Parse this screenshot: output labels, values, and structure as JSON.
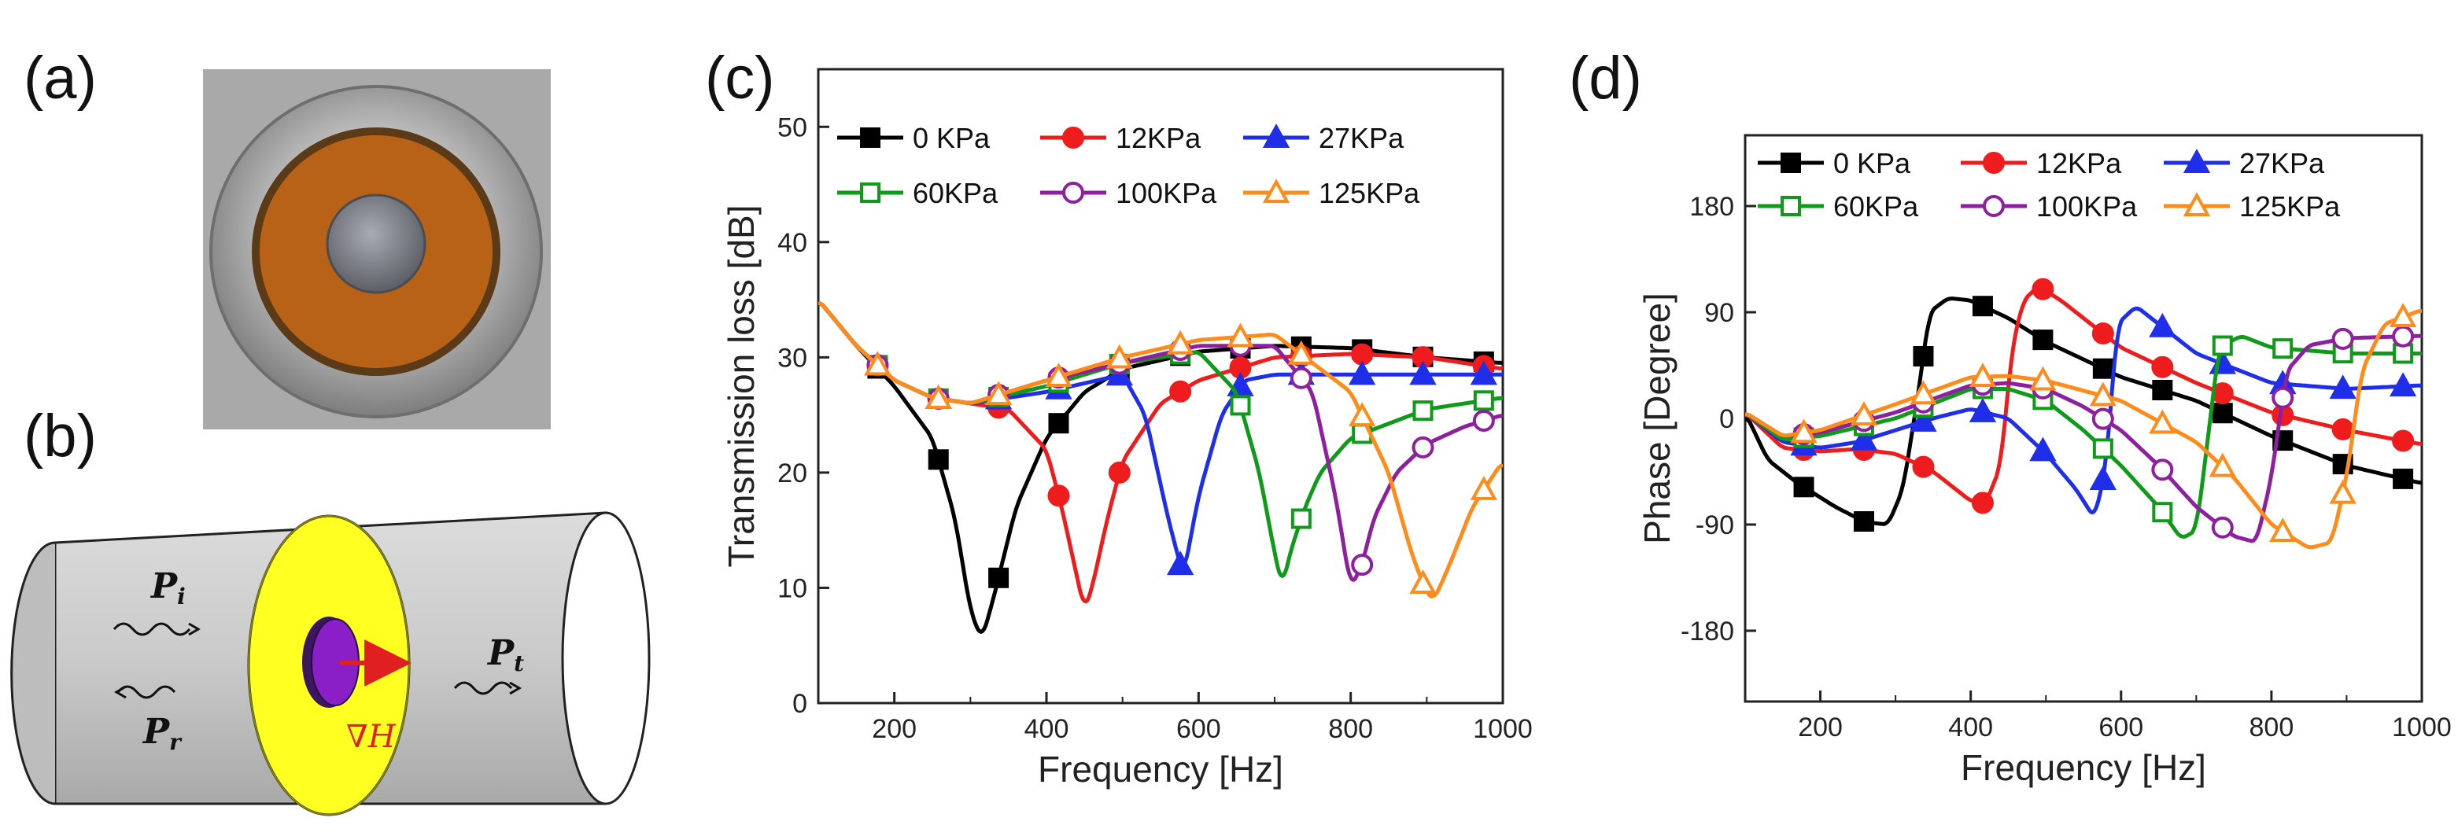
{
  "panels": {
    "a": {
      "label": "(a)"
    },
    "b": {
      "label": "(b)",
      "symbols": {
        "Pi": "P",
        "Pi_sub": "i",
        "Pr": "P",
        "Pr_sub": "r",
        "Pt": "P",
        "Pt_sub": "t",
        "gradient": "∇H"
      }
    },
    "c": {
      "label": "(c)"
    },
    "d": {
      "label": "(d)"
    }
  },
  "colors": {
    "s0": "#000000",
    "s12": "#ee1c1c",
    "s27": "#1f2ee8",
    "s60": "#0f9a1a",
    "s100": "#8e1f9e",
    "s125": "#ff8c1a"
  },
  "chart_data": [
    {
      "type": "line",
      "panel": "c",
      "xlabel": "Frequency [Hz]",
      "ylabel": "Transmission loss [dB]",
      "xlim": [
        100,
        1000
      ],
      "ylim": [
        0,
        55
      ],
      "xticks": [
        200,
        400,
        600,
        800,
        1000
      ],
      "yticks": [
        0,
        10,
        20,
        30,
        40,
        50
      ],
      "legend_position": "top",
      "series": [
        {
          "name": "0 KPa",
          "color": "#000000",
          "marker": "square",
          "filled": true,
          "x": [
            100,
            150,
            200,
            250,
            280,
            300,
            315,
            330,
            360,
            400,
            450,
            500,
            600,
            700,
            800,
            900,
            1000
          ],
          "y": [
            35,
            31,
            27.5,
            23,
            16,
            8,
            5.5,
            9,
            17,
            23,
            27,
            29,
            30.5,
            31,
            30.8,
            30,
            29.5
          ],
          "mx": [
            178,
            258,
            337,
            416,
            496,
            576,
            655,
            735,
            815,
            895,
            975
          ]
        },
        {
          "name": "12KPa",
          "color": "#ee1c1c",
          "marker": "circle",
          "filled": true,
          "x": [
            100,
            150,
            200,
            250,
            300,
            350,
            400,
            420,
            440,
            450,
            460,
            480,
            500,
            550,
            600,
            700,
            800,
            900,
            1000
          ],
          "y": [
            35,
            31,
            28,
            26.5,
            26,
            25.5,
            22,
            17,
            11,
            8,
            10,
            16,
            21,
            26,
            28,
            30,
            30.3,
            30,
            29
          ],
          "mx": [
            178,
            258,
            337,
            416,
            496,
            576,
            655,
            735,
            815,
            895,
            975
          ]
        },
        {
          "name": "27KPa",
          "color": "#1f2ee8",
          "marker": "triangle",
          "filled": true,
          "x": [
            100,
            150,
            200,
            250,
            300,
            400,
            500,
            530,
            560,
            580,
            600,
            630,
            660,
            700,
            800,
            900,
            1000
          ],
          "y": [
            35,
            31,
            28,
            26.5,
            26,
            27,
            28.5,
            25,
            16,
            11,
            18,
            25,
            28,
            28.5,
            28.5,
            28.5,
            28.5
          ],
          "mx": [
            178,
            258,
            337,
            416,
            496,
            576,
            655,
            735,
            815,
            895,
            975
          ]
        },
        {
          "name": "60KPa",
          "color": "#0f9a1a",
          "marker": "square",
          "filled": false,
          "x": [
            100,
            150,
            200,
            250,
            300,
            400,
            500,
            600,
            650,
            680,
            700,
            710,
            720,
            740,
            760,
            800,
            900,
            1000
          ],
          "y": [
            35,
            31,
            28,
            26.5,
            26,
            27.5,
            29.5,
            30.5,
            27,
            20,
            13,
            10,
            13,
            17,
            20,
            23,
            25.5,
            26.5
          ],
          "mx": [
            178,
            258,
            337,
            416,
            496,
            576,
            655,
            735,
            815,
            895,
            975
          ]
        },
        {
          "name": "100KPa",
          "color": "#8e1f9e",
          "marker": "circle",
          "filled": false,
          "x": [
            100,
            150,
            200,
            250,
            300,
            400,
            500,
            600,
            700,
            750,
            780,
            800,
            815,
            830,
            860,
            900,
            950,
            1000
          ],
          "y": [
            35,
            31,
            28,
            26.5,
            26,
            28,
            29.5,
            31,
            31,
            27,
            18,
            10,
            12,
            16,
            20,
            22.5,
            24,
            25
          ],
          "mx": [
            178,
            258,
            337,
            416,
            496,
            576,
            655,
            735,
            815,
            895,
            975
          ]
        },
        {
          "name": "125KPa",
          "color": "#ff8c1a",
          "marker": "triangle",
          "filled": false,
          "x": [
            100,
            150,
            200,
            250,
            300,
            400,
            500,
            600,
            700,
            800,
            850,
            880,
            900,
            910,
            930,
            960,
            1000
          ],
          "y": [
            35,
            31,
            28,
            26.5,
            26,
            28,
            30,
            31.5,
            32,
            27,
            20,
            13,
            9.5,
            9,
            12,
            17,
            21
          ],
          "mx": [
            178,
            258,
            337,
            416,
            496,
            576,
            655,
            735,
            815,
            895,
            975
          ]
        }
      ]
    },
    {
      "type": "line",
      "panel": "d",
      "xlabel": "Frequency [Hz]",
      "ylabel": "Phase [Degree]",
      "xlim": [
        100,
        1000
      ],
      "ylim": [
        -240,
        240
      ],
      "xticks": [
        200,
        400,
        600,
        800,
        1000
      ],
      "yticks": [
        -180,
        -90,
        0,
        90,
        180
      ],
      "legend_position": "top",
      "series": [
        {
          "name": "0 KPa",
          "color": "#000000",
          "marker": "square",
          "filled": true,
          "x": [
            100,
            130,
            170,
            220,
            260,
            290,
            310,
            330,
            345,
            370,
            400,
            450,
            500,
            600,
            700,
            800,
            900,
            1000
          ],
          "y": [
            5,
            -35,
            -55,
            -75,
            -88,
            -90,
            -60,
            20,
            90,
            102,
            100,
            85,
            65,
            35,
            15,
            -15,
            -40,
            -55
          ],
          "mx": [
            178,
            258,
            337,
            416,
            496,
            576,
            655,
            735,
            815,
            895,
            975
          ]
        },
        {
          "name": "12KPa",
          "color": "#ee1c1c",
          "marker": "circle",
          "filled": true,
          "x": [
            100,
            150,
            200,
            250,
            300,
            350,
            400,
            420,
            440,
            455,
            470,
            490,
            520,
            600,
            700,
            800,
            900,
            1000
          ],
          "y": [
            5,
            -25,
            -28,
            -26,
            -30,
            -45,
            -70,
            -72,
            -40,
            60,
            100,
            112,
            100,
            60,
            30,
            5,
            -10,
            -22
          ],
          "mx": [
            178,
            258,
            337,
            416,
            496,
            576,
            655,
            735,
            815,
            895,
            975
          ]
        },
        {
          "name": "27KPa",
          "color": "#1f2ee8",
          "marker": "triangle",
          "filled": true,
          "x": [
            100,
            150,
            200,
            250,
            300,
            350,
            400,
            450,
            500,
            540,
            565,
            580,
            595,
            620,
            700,
            800,
            900,
            1000
          ],
          "y": [
            5,
            -20,
            -25,
            -20,
            -10,
            0,
            8,
            0,
            -30,
            -60,
            -85,
            -40,
            80,
            95,
            55,
            30,
            25,
            28
          ],
          "mx": [
            178,
            258,
            337,
            416,
            496,
            576,
            655,
            735,
            815,
            895,
            975
          ]
        },
        {
          "name": "60KPa",
          "color": "#0f9a1a",
          "marker": "square",
          "filled": false,
          "x": [
            100,
            150,
            200,
            300,
            400,
            450,
            500,
            550,
            600,
            650,
            680,
            700,
            715,
            730,
            760,
            800,
            900,
            1000
          ],
          "y": [
            5,
            -18,
            -15,
            0,
            25,
            25,
            15,
            -10,
            -40,
            -75,
            -102,
            -95,
            -20,
            60,
            70,
            60,
            55,
            55
          ],
          "mx": [
            178,
            258,
            337,
            416,
            496,
            576,
            655,
            735,
            815,
            895,
            975
          ]
        },
        {
          "name": "100KPa",
          "color": "#8e1f9e",
          "marker": "circle",
          "filled": false,
          "x": [
            100,
            150,
            200,
            300,
            400,
            450,
            500,
            550,
            600,
            650,
            700,
            750,
            780,
            800,
            820,
            850,
            900,
            1000
          ],
          "y": [
            5,
            -15,
            -12,
            5,
            28,
            30,
            25,
            10,
            -10,
            -40,
            -75,
            -100,
            -105,
            -50,
            40,
            62,
            68,
            70
          ],
          "mx": [
            178,
            258,
            337,
            416,
            496,
            576,
            655,
            735,
            815,
            895,
            975
          ]
        },
        {
          "name": "125KPa",
          "color": "#ff8c1a",
          "marker": "triangle",
          "filled": false,
          "x": [
            100,
            150,
            200,
            300,
            400,
            450,
            500,
            600,
            700,
            750,
            800,
            850,
            880,
            900,
            920,
            950,
            1000
          ],
          "y": [
            5,
            -15,
            -10,
            12,
            35,
            36,
            32,
            15,
            -20,
            -50,
            -90,
            -110,
            -105,
            -50,
            40,
            80,
            92
          ],
          "mx": [
            178,
            258,
            337,
            416,
            496,
            576,
            655,
            735,
            815,
            895,
            975
          ]
        }
      ]
    }
  ]
}
